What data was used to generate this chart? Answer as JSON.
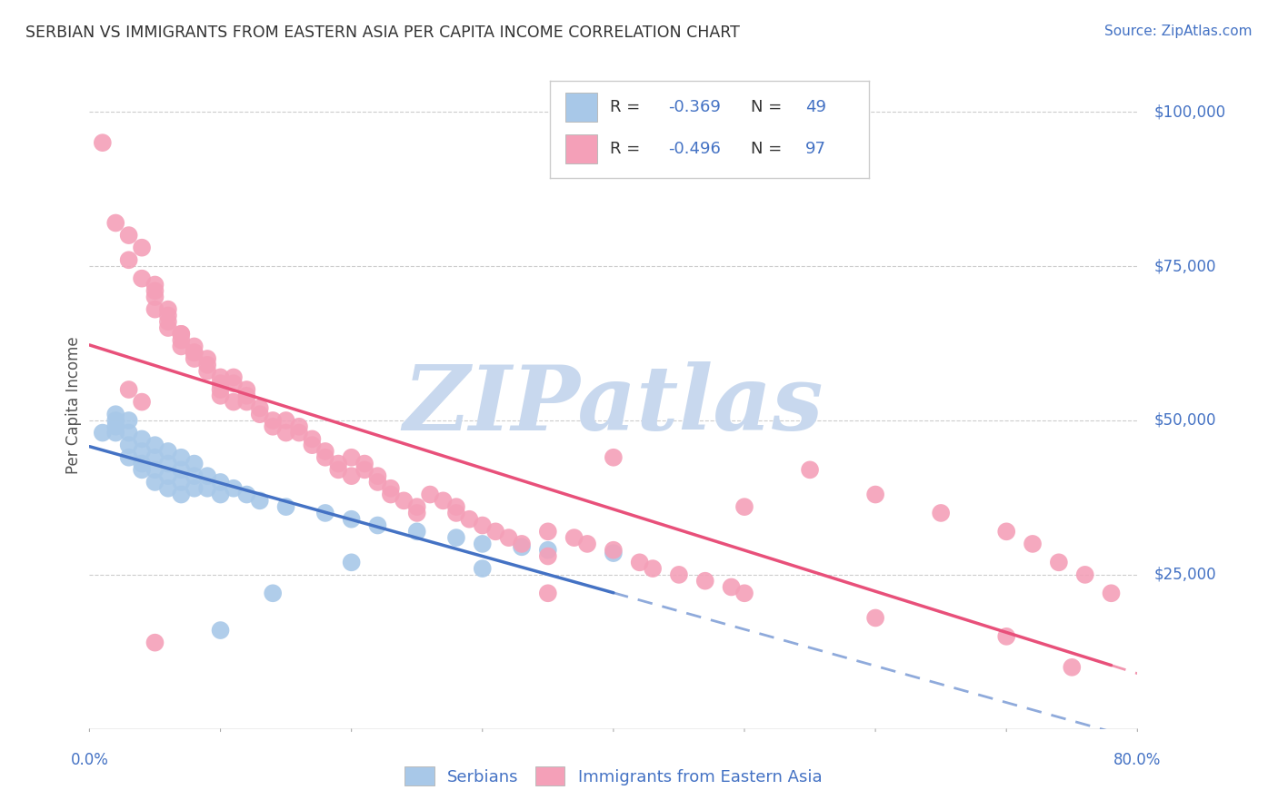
{
  "title": "SERBIAN VS IMMIGRANTS FROM EASTERN ASIA PER CAPITA INCOME CORRELATION CHART",
  "source": "Source: ZipAtlas.com",
  "ylabel": "Per Capita Income",
  "watermark": "ZIPatlas",
  "series": [
    {
      "name": "Serbians",
      "R": -0.369,
      "N": 49,
      "color": "#a8c8e8",
      "line_color": "#4472c4",
      "points": [
        [
          1,
          48000
        ],
        [
          2,
          49000
        ],
        [
          2,
          51000
        ],
        [
          2,
          50000
        ],
        [
          2,
          48000
        ],
        [
          3,
          50000
        ],
        [
          3,
          48000
        ],
        [
          3,
          46000
        ],
        [
          3,
          44000
        ],
        [
          4,
          47000
        ],
        [
          4,
          45000
        ],
        [
          4,
          43000
        ],
        [
          4,
          42000
        ],
        [
          5,
          46000
        ],
        [
          5,
          44000
        ],
        [
          5,
          42000
        ],
        [
          5,
          40000
        ],
        [
          6,
          45000
        ],
        [
          6,
          43000
        ],
        [
          6,
          41000
        ],
        [
          6,
          39000
        ],
        [
          7,
          44000
        ],
        [
          7,
          42000
        ],
        [
          7,
          40000
        ],
        [
          7,
          38000
        ],
        [
          8,
          43000
        ],
        [
          8,
          41000
        ],
        [
          8,
          39000
        ],
        [
          9,
          41000
        ],
        [
          9,
          39000
        ],
        [
          10,
          40000
        ],
        [
          10,
          38000
        ],
        [
          11,
          39000
        ],
        [
          12,
          38000
        ],
        [
          13,
          37000
        ],
        [
          15,
          36000
        ],
        [
          18,
          35000
        ],
        [
          20,
          34000
        ],
        [
          22,
          33000
        ],
        [
          25,
          32000
        ],
        [
          28,
          31000
        ],
        [
          30,
          30000
        ],
        [
          33,
          29500
        ],
        [
          35,
          29000
        ],
        [
          40,
          28500
        ],
        [
          10,
          16000
        ],
        [
          14,
          22000
        ],
        [
          20,
          27000
        ],
        [
          30,
          26000
        ]
      ]
    },
    {
      "name": "Immigrants from Eastern Asia",
      "R": -0.496,
      "N": 97,
      "color": "#f4a0b8",
      "line_color": "#e8507a",
      "points": [
        [
          1,
          95000
        ],
        [
          2,
          82000
        ],
        [
          3,
          80000
        ],
        [
          4,
          78000
        ],
        [
          3,
          76000
        ],
        [
          4,
          73000
        ],
        [
          5,
          72000
        ],
        [
          5,
          71000
        ],
        [
          5,
          70000
        ],
        [
          5,
          68000
        ],
        [
          6,
          68000
        ],
        [
          6,
          67000
        ],
        [
          6,
          66000
        ],
        [
          6,
          65000
        ],
        [
          7,
          64000
        ],
        [
          7,
          64000
        ],
        [
          7,
          63000
        ],
        [
          7,
          62000
        ],
        [
          8,
          61000
        ],
        [
          8,
          60000
        ],
        [
          8,
          62000
        ],
        [
          8,
          61000
        ],
        [
          9,
          60000
        ],
        [
          9,
          59000
        ],
        [
          9,
          58000
        ],
        [
          10,
          57000
        ],
        [
          10,
          56000
        ],
        [
          10,
          55000
        ],
        [
          10,
          54000
        ],
        [
          11,
          53000
        ],
        [
          11,
          57000
        ],
        [
          11,
          56000
        ],
        [
          12,
          55000
        ],
        [
          12,
          54000
        ],
        [
          12,
          53000
        ],
        [
          13,
          52000
        ],
        [
          13,
          51000
        ],
        [
          14,
          50000
        ],
        [
          14,
          49000
        ],
        [
          15,
          48000
        ],
        [
          15,
          50000
        ],
        [
          16,
          49000
        ],
        [
          16,
          48000
        ],
        [
          17,
          47000
        ],
        [
          17,
          46000
        ],
        [
          18,
          45000
        ],
        [
          18,
          44000
        ],
        [
          19,
          43000
        ],
        [
          19,
          42000
        ],
        [
          20,
          41000
        ],
        [
          20,
          44000
        ],
        [
          21,
          43000
        ],
        [
          21,
          42000
        ],
        [
          22,
          41000
        ],
        [
          22,
          40000
        ],
        [
          23,
          39000
        ],
        [
          23,
          38000
        ],
        [
          24,
          37000
        ],
        [
          25,
          36000
        ],
        [
          25,
          35000
        ],
        [
          26,
          38000
        ],
        [
          27,
          37000
        ],
        [
          28,
          36000
        ],
        [
          28,
          35000
        ],
        [
          29,
          34000
        ],
        [
          30,
          33000
        ],
        [
          31,
          32000
        ],
        [
          32,
          31000
        ],
        [
          33,
          30000
        ],
        [
          35,
          28000
        ],
        [
          35,
          32000
        ],
        [
          37,
          31000
        ],
        [
          38,
          30000
        ],
        [
          40,
          29000
        ],
        [
          42,
          27000
        ],
        [
          43,
          26000
        ],
        [
          45,
          25000
        ],
        [
          47,
          24000
        ],
        [
          49,
          23000
        ],
        [
          50,
          22000
        ],
        [
          3,
          55000
        ],
        [
          4,
          53000
        ],
        [
          55,
          42000
        ],
        [
          60,
          38000
        ],
        [
          65,
          35000
        ],
        [
          70,
          32000
        ],
        [
          72,
          30000
        ],
        [
          74,
          27000
        ],
        [
          76,
          25000
        ],
        [
          78,
          22000
        ],
        [
          5,
          14000
        ],
        [
          35,
          22000
        ],
        [
          60,
          18000
        ],
        [
          70,
          15000
        ],
        [
          75,
          10000
        ],
        [
          40,
          44000
        ],
        [
          50,
          36000
        ]
      ]
    }
  ],
  "yticks": [
    25000,
    50000,
    75000,
    100000
  ],
  "ytick_labels": [
    "$25,000",
    "$50,000",
    "$75,000",
    "$100,000"
  ],
  "xtick_vals": [
    0,
    10,
    20,
    30,
    40,
    50,
    60,
    70,
    80
  ],
  "xtick_labels": [
    "0.0%",
    "",
    "",
    "",
    "",
    "",
    "",
    "",
    "80.0%"
  ],
  "xlim": [
    0,
    80
  ],
  "ylim": [
    0,
    105000
  ],
  "background_color": "#ffffff",
  "grid_color": "#cccccc",
  "title_color": "#333333",
  "source_color": "#4472c4",
  "axis_label_color": "#555555",
  "tick_label_color": "#4472c4",
  "legend_N_color": "#4472c4",
  "watermark_color": "#c8d8ee"
}
